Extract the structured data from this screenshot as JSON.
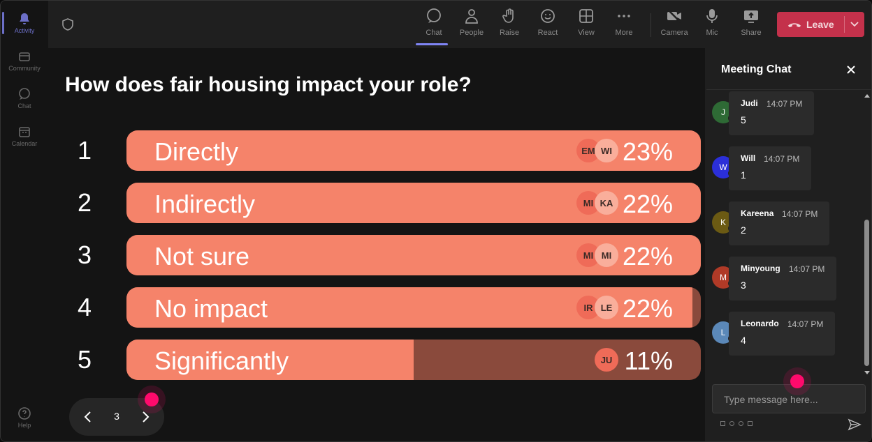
{
  "rail": {
    "items": [
      {
        "label": "Activity",
        "icon": "bell-icon",
        "active": true
      },
      {
        "label": "Community",
        "icon": "community-icon"
      },
      {
        "label": "Chat",
        "icon": "chat-icon"
      },
      {
        "label": "Calendar",
        "icon": "calendar-icon"
      }
    ],
    "help_label": "Help"
  },
  "toolbar": {
    "chat": "Chat",
    "people": "People",
    "raise": "Raise",
    "react": "React",
    "view": "View",
    "more": "More",
    "camera": "Camera",
    "mic": "Mic",
    "share": "Share",
    "leave": "Leave"
  },
  "poll": {
    "question": "How does fair housing impact your role?",
    "options": [
      {
        "num": "1",
        "label": "Directly",
        "pct": "23%",
        "fill": 1.0,
        "avatars": [
          "EM",
          "WI"
        ]
      },
      {
        "num": "2",
        "label": "Indirectly",
        "pct": "22%",
        "fill": 1.0,
        "avatars": [
          "MI",
          "KA"
        ]
      },
      {
        "num": "3",
        "label": "Not sure",
        "pct": "22%",
        "fill": 1.0,
        "avatars": [
          "MI",
          "MI"
        ]
      },
      {
        "num": "4",
        "label": "No impact",
        "pct": "22%",
        "fill": 0.985,
        "avatars": [
          "IR",
          "LE"
        ]
      },
      {
        "num": "5",
        "label": "Significantly",
        "pct": "11%",
        "fill": 0.5,
        "avatars": [
          "JU"
        ]
      }
    ],
    "page": "3"
  },
  "chat": {
    "title": "Meeting Chat",
    "messages": [
      {
        "name": "Judi",
        "time": "14:07 PM",
        "text": "5",
        "initial": "J",
        "color": "#2e6a35"
      },
      {
        "name": "Will",
        "time": "14:07 PM",
        "text": "1",
        "initial": "W",
        "color": "#2b2fd9"
      },
      {
        "name": "Kareena",
        "time": "14:07 PM",
        "text": "2",
        "initial": "K",
        "color": "#6b5a13"
      },
      {
        "name": "Minyoung",
        "time": "14:07 PM",
        "text": "3",
        "initial": "M",
        "color": "#b03a27"
      },
      {
        "name": "Leonardo",
        "time": "14:07 PM",
        "text": "4",
        "initial": "L",
        "color": "#5b88b8"
      }
    ],
    "placeholder": "Type message here..."
  },
  "colors": {
    "accent": "#7f85f5",
    "leave": "#c4314b",
    "bar_fill": "#f5836a",
    "bar_track": "#8a4a3c"
  }
}
